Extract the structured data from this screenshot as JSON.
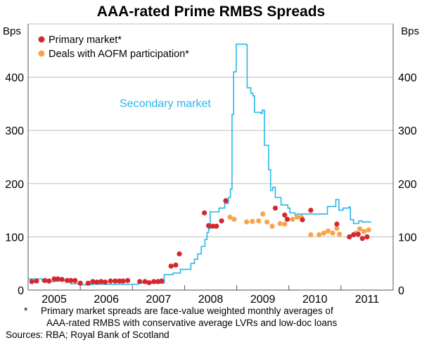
{
  "chart_data": {
    "type": "line",
    "title": "AAA-rated Prime RMBS Spreads",
    "ylabel_left": "Bps",
    "ylabel_right": "Bps",
    "ylim": [
      0,
      500
    ],
    "xlim": [
      2005,
      2012
    ],
    "yticks": [
      0,
      100,
      200,
      300,
      400
    ],
    "xtick_labels": [
      "2005",
      "2006",
      "2007",
      "2008",
      "2009",
      "2010",
      "2011"
    ],
    "grid": true,
    "legend_placement": "top-left",
    "legend": [
      "Primary market*",
      "Deals with AOFM participation*"
    ],
    "annotation": "Secondary market",
    "colors": {
      "secondary": "#29b6e8",
      "primary": "#d7262e",
      "aofm": "#f9a44a",
      "grid": "#bdbdbd"
    },
    "series": [
      {
        "name": "Secondary market",
        "kind": "step-line",
        "points": [
          [
            2005.0,
            21
          ],
          [
            2005.27,
            16
          ],
          [
            2005.54,
            17
          ],
          [
            2005.81,
            12
          ],
          [
            2006.01,
            10
          ],
          [
            2006.21,
            11
          ],
          [
            2007.11,
            13
          ],
          [
            2007.57,
            13
          ],
          [
            2007.61,
            29
          ],
          [
            2007.78,
            32
          ],
          [
            2007.92,
            39
          ],
          [
            2008.12,
            50
          ],
          [
            2008.19,
            58
          ],
          [
            2008.25,
            68
          ],
          [
            2008.32,
            82
          ],
          [
            2008.39,
            95
          ],
          [
            2008.43,
            108
          ],
          [
            2008.46,
            124
          ],
          [
            2008.48,
            115
          ],
          [
            2008.49,
            147
          ],
          [
            2008.59,
            147
          ],
          [
            2008.66,
            154
          ],
          [
            2008.77,
            163
          ],
          [
            2008.84,
            174
          ],
          [
            2008.88,
            190
          ],
          [
            2008.91,
            330
          ],
          [
            2008.94,
            410
          ],
          [
            2008.99,
            462
          ],
          [
            2009.19,
            460
          ],
          [
            2009.2,
            380
          ],
          [
            2009.27,
            370
          ],
          [
            2009.31,
            365
          ],
          [
            2009.34,
            334
          ],
          [
            2009.46,
            332
          ],
          [
            2009.49,
            338
          ],
          [
            2009.53,
            272
          ],
          [
            2009.57,
            272
          ],
          [
            2009.61,
            226
          ],
          [
            2009.65,
            187
          ],
          [
            2009.69,
            193
          ],
          [
            2009.74,
            174
          ],
          [
            2009.85,
            160
          ],
          [
            2009.98,
            154
          ],
          [
            2010.02,
            145
          ],
          [
            2010.12,
            141
          ],
          [
            2010.16,
            143
          ],
          [
            2010.66,
            143
          ],
          [
            2010.74,
            157
          ],
          [
            2010.87,
            157
          ],
          [
            2010.9,
            170
          ],
          [
            2010.96,
            150
          ],
          [
            2011.04,
            154
          ],
          [
            2011.15,
            156
          ],
          [
            2011.18,
            132
          ],
          [
            2011.24,
            125
          ],
          [
            2011.34,
            130
          ],
          [
            2011.4,
            128
          ],
          [
            2011.58,
            128
          ]
        ]
      },
      {
        "name": "Primary market*",
        "kind": "scatter",
        "points": [
          [
            2005.07,
            16
          ],
          [
            2005.16,
            17
          ],
          [
            2005.32,
            18
          ],
          [
            2005.4,
            17
          ],
          [
            2005.5,
            21
          ],
          [
            2005.57,
            21
          ],
          [
            2005.65,
            20
          ],
          [
            2005.75,
            18
          ],
          [
            2005.82,
            18
          ],
          [
            2005.9,
            18
          ],
          [
            2006.0,
            13
          ],
          [
            2006.15,
            13
          ],
          [
            2006.24,
            16
          ],
          [
            2006.32,
            15
          ],
          [
            2006.4,
            16
          ],
          [
            2006.48,
            15
          ],
          [
            2006.58,
            17
          ],
          [
            2006.67,
            17
          ],
          [
            2006.75,
            17
          ],
          [
            2006.82,
            17
          ],
          [
            2006.91,
            18
          ],
          [
            2007.14,
            16
          ],
          [
            2007.24,
            16
          ],
          [
            2007.32,
            14
          ],
          [
            2007.41,
            16
          ],
          [
            2007.49,
            16
          ],
          [
            2007.56,
            17
          ],
          [
            2007.74,
            45
          ],
          [
            2007.83,
            47
          ],
          [
            2007.9,
            68
          ],
          [
            2008.38,
            145
          ],
          [
            2008.46,
            121
          ],
          [
            2008.54,
            120
          ],
          [
            2008.61,
            120
          ],
          [
            2008.71,
            130
          ],
          [
            2008.79,
            168
          ],
          [
            2009.74,
            154
          ],
          [
            2009.92,
            141
          ],
          [
            2009.97,
            133
          ],
          [
            2010.26,
            132
          ],
          [
            2010.42,
            150
          ],
          [
            2010.92,
            124
          ],
          [
            2011.16,
            100
          ],
          [
            2011.24,
            104
          ],
          [
            2011.33,
            105
          ],
          [
            2011.41,
            97
          ],
          [
            2011.5,
            100
          ]
        ]
      },
      {
        "name": "Deals with AOFM participation*",
        "kind": "scatter",
        "points": [
          [
            2008.87,
            137
          ],
          [
            2008.95,
            133
          ],
          [
            2009.19,
            128
          ],
          [
            2009.3,
            129
          ],
          [
            2009.42,
            130
          ],
          [
            2009.5,
            143
          ],
          [
            2009.58,
            128
          ],
          [
            2009.68,
            120
          ],
          [
            2009.83,
            125
          ],
          [
            2009.92,
            124
          ],
          [
            2010.07,
            133
          ],
          [
            2010.16,
            137
          ],
          [
            2010.24,
            137
          ],
          [
            2010.42,
            104
          ],
          [
            2010.58,
            104
          ],
          [
            2010.67,
            107
          ],
          [
            2010.75,
            111
          ],
          [
            2010.84,
            107
          ],
          [
            2010.92,
            116
          ],
          [
            2010.97,
            105
          ],
          [
            2011.29,
            107
          ],
          [
            2011.36,
            115
          ],
          [
            2011.44,
            110
          ],
          [
            2011.53,
            113
          ]
        ]
      }
    ]
  },
  "footnotes": {
    "note_marker": "*",
    "note_line1": "Primary market spreads are face-value weighted monthly averages of",
    "note_line2": "AAA-rated RMBS with conservative average LVRs and low-doc loans",
    "sources": "Sources: RBA; Royal Bank of Scotland"
  }
}
